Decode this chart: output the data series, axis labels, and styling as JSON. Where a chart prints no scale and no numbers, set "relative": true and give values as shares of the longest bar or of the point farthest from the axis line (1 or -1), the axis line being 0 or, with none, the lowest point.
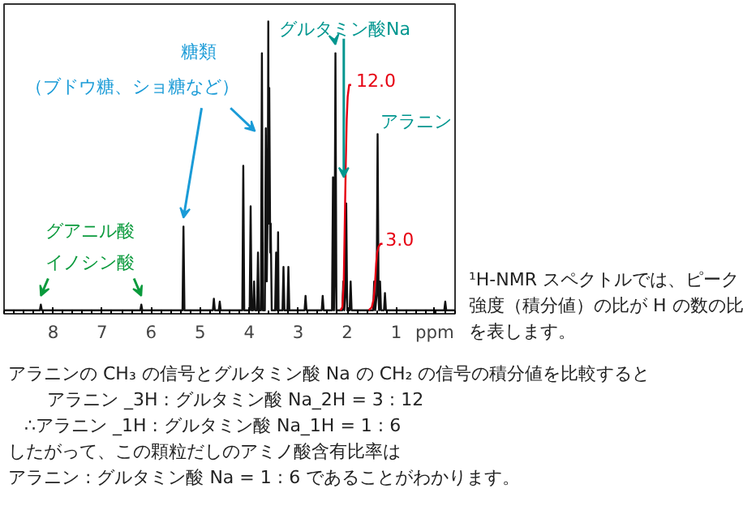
{
  "chart_data": {
    "type": "line",
    "relative": true,
    "xlabel": "ppm",
    "xlim": [
      9.0,
      -0.2
    ],
    "xticks": [
      8,
      7,
      6,
      5,
      4,
      3,
      2,
      1
    ],
    "series": [
      {
        "color": "#111111",
        "x": [
          9.0,
          8.27,
          8.25,
          8.23,
          6.22,
          6.2,
          6.18,
          5.36,
          5.34,
          5.32,
          4.74,
          4.72,
          4.7,
          4.62,
          4.6,
          4.58,
          4.14,
          4.12,
          4.1,
          3.99,
          3.97,
          3.95,
          3.92,
          3.9,
          3.88,
          3.84,
          3.82,
          3.8,
          3.76,
          3.74,
          3.72,
          3.68,
          3.66,
          3.64,
          3.62,
          3.61,
          3.6,
          3.59,
          3.57,
          3.56,
          3.54,
          3.47,
          3.45,
          3.43,
          3.42,
          3.41,
          3.4,
          3.32,
          3.3,
          3.28,
          3.22,
          3.2,
          3.18,
          2.87,
          2.85,
          2.83,
          2.52,
          2.5,
          2.48,
          2.31,
          2.29,
          2.27,
          2.26,
          2.24,
          2.22,
          2.1,
          2.08,
          2.06,
          2.04,
          2.02,
          2.0,
          1.95,
          1.93,
          1.91,
          1.47,
          1.45,
          1.43,
          1.4,
          1.38,
          1.36,
          1.35,
          1.33,
          1.31,
          1.25,
          1.23,
          1.21,
          0.02,
          0.0,
          -0.02,
          -0.2
        ],
        "values": [
          0,
          0,
          0.02,
          0,
          0,
          0.02,
          0,
          0,
          0.29,
          0,
          0,
          0.04,
          0,
          0,
          0.03,
          0,
          0,
          0.5,
          0,
          0,
          0.36,
          0,
          0,
          0.1,
          0,
          0,
          0.2,
          0,
          0,
          0.89,
          0,
          0,
          0.63,
          0.1,
          0.4,
          1.0,
          0.3,
          0.77,
          0.2,
          0.3,
          0,
          0,
          0.2,
          0,
          0.05,
          0.27,
          0,
          0,
          0.15,
          0,
          0,
          0.15,
          0,
          0,
          0.05,
          0,
          0,
          0.05,
          0,
          0,
          0.46,
          0,
          0.1,
          0.89,
          0,
          0,
          0.1,
          0,
          0.05,
          0.37,
          0,
          0,
          0.1,
          0,
          0,
          0.1,
          0,
          0.05,
          0.61,
          0.05,
          0,
          0.1,
          0,
          0,
          0.06,
          0,
          0,
          0.03,
          0,
          0
        ]
      },
      {
        "color": "#e60012",
        "x": [
          2.14,
          2.1,
          2.07,
          2.05,
          2.03,
          2.01,
          1.99,
          1.96,
          1.92
        ],
        "values": [
          0,
          0.01,
          0.1,
          0.3,
          0.5,
          0.66,
          0.74,
          0.78,
          0.78
        ]
      },
      {
        "color": "#e60012",
        "x": [
          1.56,
          1.5,
          1.46,
          1.43,
          1.41,
          1.39,
          1.36,
          1.32,
          1.28
        ],
        "values": [
          0,
          0.01,
          0.04,
          0.1,
          0.16,
          0.2,
          0.22,
          0.23,
          0.23
        ]
      }
    ],
    "annotations": [
      "糖類",
      {
        "text": "（ブドウ糖、ショ糖など）",
        "x": 5.34,
        "y": 0.29
      },
      "グアニル酸",
      {
        "text": "イノシン酸",
        "x": 8.25,
        "y": 0.02
      },
      {
        "text": "グルタミン酸Na",
        "x": 2.24,
        "y": 0.89
      },
      {
        "text": "アラニン",
        "x": 1.38,
        "y": 0.61
      },
      {
        "text": "12.0",
        "x": 1.92,
        "y": 0.78
      },
      {
        "text": "3.0",
        "x": 1.28,
        "y": 0.23
      },
      "¹H-NMR スペクトルでは、ピーク強度（積分値）の比が H の数の比を表します。",
      "アラニンの CH₃ の信号とグルタミン酸 Na の CH₂ の信号の積分値を比較すると",
      "アラニン _3H : グルタミン酸 Na_2H = 3 : 12",
      "∴アラニン _1H : グルタミン酸 Na_1H = 1 : 6",
      "したがって、この顆粒だしのアミノ酸含有比率は",
      "アラニン : グルタミン酸 Na = 1 : 6 であることがわかります。"
    ]
  }
}
